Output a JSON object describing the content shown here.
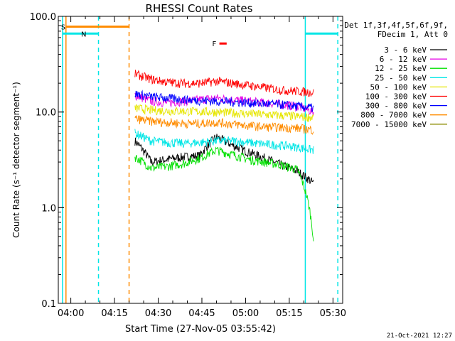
{
  "chart_data": {
    "type": "line",
    "title": "RHESSI Count Rates",
    "xlabel": "Start Time (27-Nov-05 03:55:42)",
    "ylabel": "Count Rate (s⁻¹ detector segment⁻¹)",
    "yscale": "log",
    "ylim": [
      0.1,
      100
    ],
    "xlim": [
      "03:55:42",
      "05:33:20"
    ],
    "x_ticks": [
      "04:00",
      "04:15",
      "04:30",
      "04:45",
      "05:00",
      "05:15",
      "05:30"
    ],
    "y_ticks": [
      "0.1",
      "1.0",
      "10.0",
      "100.0"
    ],
    "legend": {
      "placement": "right-outside",
      "header": [
        "Det 1f,3f,4f,5f,6f,9f,",
        "FDecim 1, Att 0"
      ]
    },
    "series": [
      {
        "name": "3 - 6 keV",
        "color": "#000000",
        "start": "04:22:00",
        "end": "05:23:20",
        "values": [
          5.0,
          3.0,
          3.2,
          3.4,
          3.5,
          5.5,
          4.5,
          3.8,
          3.3,
          2.8,
          2.4,
          1.8
        ]
      },
      {
        "name": "6 - 12 keV",
        "color": "#e600e6",
        "start": "04:22:00",
        "end": "05:23:20",
        "values": [
          15,
          13,
          12.5,
          13,
          13.5,
          14,
          13.5,
          13,
          12.5,
          12,
          11.5,
          10
        ]
      },
      {
        "name": "12 - 25 keV",
        "color": "#00e000",
        "start": "04:22:00",
        "end": "05:23:20",
        "values": [
          3.4,
          2.6,
          2.7,
          2.9,
          3.3,
          4.0,
          3.6,
          3.2,
          3.0,
          2.8,
          2.5,
          0.45
        ]
      },
      {
        "name": "25 - 50 keV",
        "color": "#00e6e6",
        "start": "04:22:00",
        "end": "05:23:20",
        "values": [
          6.0,
          5.0,
          4.8,
          4.7,
          4.8,
          5.0,
          5.0,
          4.8,
          4.6,
          4.5,
          4.3,
          4.0
        ]
      },
      {
        "name": "50 - 100 keV",
        "color": "#e6e600",
        "start": "04:22:00",
        "end": "05:23:20",
        "values": [
          11.0,
          10.5,
          10.3,
          10.2,
          10.1,
          10.0,
          9.8,
          9.6,
          9.4,
          9.2,
          9.0,
          8.8
        ]
      },
      {
        "name": "100 - 300 keV",
        "color": "#ff0000",
        "start": "04:22:00",
        "end": "05:23:20",
        "values": [
          25,
          22,
          20.5,
          20,
          20,
          21,
          20,
          19,
          18,
          17,
          16.5,
          16
        ]
      },
      {
        "name": "300 - 800 keV",
        "color": "#0000ff",
        "start": "04:22:00",
        "end": "05:23:20",
        "values": [
          15.5,
          14.5,
          14,
          13.5,
          13.2,
          13,
          12.8,
          12.5,
          12.2,
          12,
          11.5,
          11
        ]
      },
      {
        "name": "800 - 7000 keV",
        "color": "#ff8c00",
        "start": "04:22:00",
        "end": "05:23:20",
        "values": [
          8.5,
          8.0,
          7.8,
          7.6,
          7.6,
          7.8,
          7.5,
          7.2,
          7.0,
          6.9,
          6.8,
          6.5
        ]
      },
      {
        "name": "7000 - 15000 keV",
        "color": "#8b8b00",
        "start": "04:22:00",
        "end": "05:23:20",
        "values": []
      }
    ],
    "flag_lines": [
      {
        "color": "#00e6e6",
        "style": "solid",
        "time": "03:57:10"
      },
      {
        "color": "#ff8c00",
        "style": "solid",
        "time": "03:58:20"
      },
      {
        "color": "#00e6e6",
        "style": "dashed",
        "time": "04:09:30"
      },
      {
        "color": "#ff8c00",
        "style": "dashed",
        "time": "04:20:00"
      },
      {
        "color": "#00e6e6",
        "style": "solid",
        "time": "05:20:30"
      },
      {
        "color": "#00e6e6",
        "style": "dashed",
        "time": "05:31:40"
      }
    ],
    "flag_bars": [
      {
        "label": "S",
        "color": "#ff8c00",
        "start": "03:58:20",
        "end": "04:20:00",
        "y": 78
      },
      {
        "label": "N",
        "color": "#00e6e6",
        "start": "03:57:10",
        "end": "04:09:30",
        "y": 66
      },
      {
        "label": "",
        "color": "#00e6e6",
        "start": "05:20:30",
        "end": "05:31:40",
        "y": 66
      },
      {
        "label": "F",
        "color": "#ff0000",
        "start": "04:51:00",
        "end": "04:53:30",
        "y": 52
      }
    ],
    "footer": "21-Oct-2021 12:27"
  }
}
